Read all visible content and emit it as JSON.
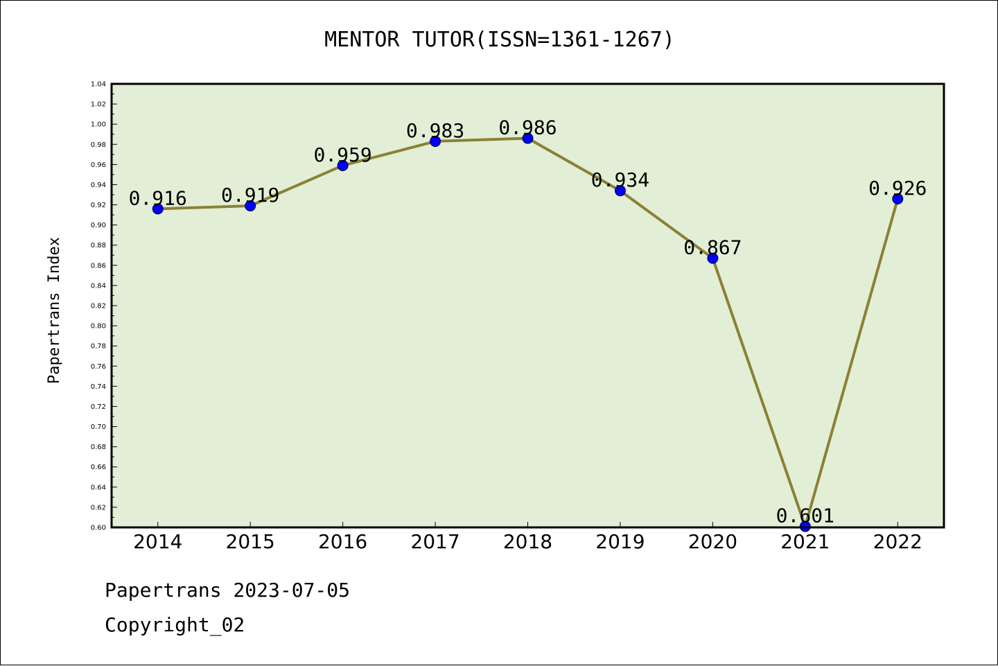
{
  "chart_data": {
    "type": "line",
    "title": "MENTOR TUTOR(ISSN=1361-1267)",
    "xlabel": "",
    "ylabel": "Papertrans Index",
    "categories": [
      "2014",
      "2015",
      "2016",
      "2017",
      "2018",
      "2019",
      "2020",
      "2021",
      "2022"
    ],
    "series": [
      {
        "values": [
          0.916,
          0.919,
          0.959,
          0.983,
          0.986,
          0.934,
          0.867,
          0.601,
          0.926
        ],
        "labels": [
          "0.916",
          "0.919",
          "0.959",
          "0.983",
          "0.986",
          "0.934",
          "0.867",
          "0.601",
          "0.926"
        ]
      }
    ],
    "ylim": [
      0.6,
      1.04
    ],
    "yticks": [
      "0.60",
      "0.62",
      "0.64",
      "0.66",
      "0.68",
      "0.70",
      "0.72",
      "0.74",
      "0.76",
      "0.78",
      "0.80",
      "0.82",
      "0.84",
      "0.86",
      "0.88",
      "0.90",
      "0.92",
      "0.94",
      "0.96",
      "0.98",
      "1.00",
      "1.02",
      "1.04"
    ],
    "grid": false,
    "colors": {
      "plot_background": "#e2efd6",
      "line": "#8b8035",
      "marker": "#0000ff"
    }
  },
  "footer": {
    "line1": "Papertrans 2023-07-05",
    "line2": "Copyright_02"
  }
}
